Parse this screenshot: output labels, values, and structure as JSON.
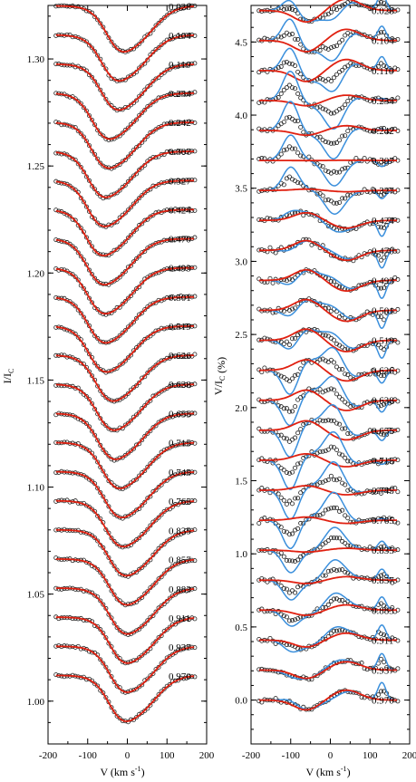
{
  "chart_data": [
    {
      "type": "line",
      "panel": "left",
      "xlabel": "V (km s",
      "xlabel_sup": "-1",
      "xlabel_end": ")",
      "ylabel": "I/I",
      "ylabel_sub": "C",
      "xlim": [
        -200,
        200
      ],
      "ylim": [
        0.98,
        1.325
      ],
      "xticks": [
        -200,
        -100,
        0,
        100,
        200
      ],
      "xtick_labels": [
        "-200",
        "-100",
        "0",
        "100",
        "200"
      ],
      "yticks": [
        1.0,
        1.05,
        1.1,
        1.15,
        1.2,
        1.25,
        1.3
      ],
      "ytick_labels": [
        "1.00",
        "1.05",
        "1.10",
        "1.15",
        "1.20",
        "1.25",
        "1.30"
      ],
      "profile_x_range": [
        -180,
        170
      ],
      "profile_offset_step": 0.0136,
      "profile_base": 1.0,
      "phases": [
        "0.028",
        "0.104",
        "0.110",
        "0.234",
        "0.242",
        "0.307",
        "0.327",
        "0.424",
        "0.470",
        "0.493",
        "0.501",
        "0.519",
        "0.626",
        "0.638",
        "0.655",
        "0.715",
        "0.745",
        "0.765",
        "0.835",
        "0.857",
        "0.883",
        "0.911",
        "0.937",
        "0.970"
      ],
      "series": [
        {
          "role": "observed",
          "marker": "open-circle",
          "color": "#000000"
        },
        {
          "role": "model",
          "color": "#e02010"
        }
      ],
      "grid": false
    },
    {
      "type": "line",
      "panel": "right",
      "xlabel": "V (km s",
      "xlabel_sup": "-1",
      "xlabel_end": ")",
      "ylabel": "V/I",
      "ylabel_sub": "C",
      "ylabel_end": " (%)",
      "xlim": [
        -200,
        200
      ],
      "ylim": [
        -0.3,
        4.75
      ],
      "xticks": [
        -200,
        -100,
        0,
        100,
        200
      ],
      "xtick_labels": [
        "-200",
        "-100",
        "0",
        "100",
        "200"
      ],
      "yticks": [
        0.0,
        0.5,
        1.0,
        1.5,
        2.0,
        2.5,
        3.0,
        3.5,
        4.0,
        4.5
      ],
      "ytick_labels": [
        "0.0",
        "0.5",
        "1.0",
        "1.5",
        "2.0",
        "2.5",
        "3.0",
        "3.5",
        "4.0",
        "4.5"
      ],
      "profile_x_range": [
        -180,
        170
      ],
      "profile_offset_step": 0.205,
      "phases": [
        "0.028",
        "0.104",
        "0.110",
        "0.234",
        "0.242",
        "0.307",
        "0.327",
        "0.424",
        "0.470",
        "0.493",
        "0.501",
        "0.519",
        "0.626",
        "0.638",
        "0.655",
        "0.715",
        "0.745",
        "0.765",
        "0.835",
        "0.857",
        "0.883",
        "0.911",
        "0.937",
        "0.970"
      ],
      "series": [
        {
          "role": "observed",
          "marker": "open-circle",
          "color": "#000000"
        },
        {
          "role": "model",
          "color": "#e02010"
        },
        {
          "role": "model-alt",
          "color": "#3a8fdc"
        }
      ],
      "grid": false
    }
  ]
}
